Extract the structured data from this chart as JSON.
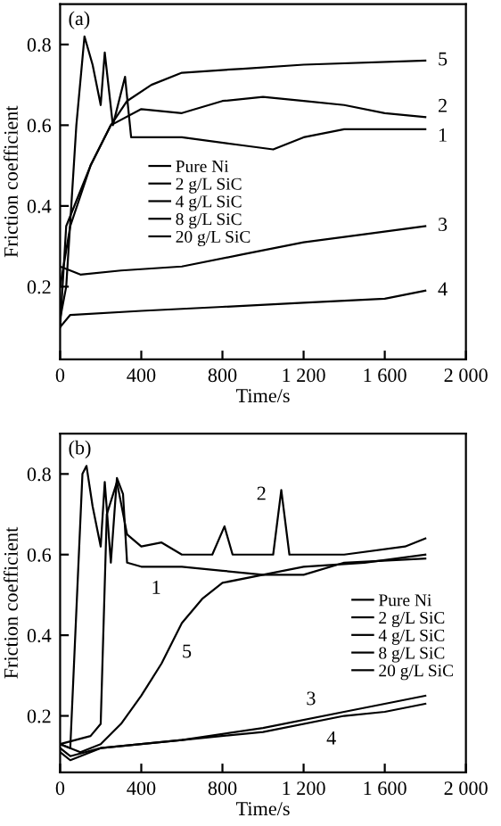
{
  "chart_data": [
    {
      "type": "line",
      "annotations": [
        "(a)",
        {
          "text": "1",
          "x": 1800,
          "y": 0.59
        },
        {
          "text": "2",
          "x": 1800,
          "y": 0.62
        },
        {
          "text": "3",
          "x": 1800,
          "y": 0.35
        },
        {
          "text": "4",
          "x": 1800,
          "y": 0.19
        },
        {
          "text": "5",
          "x": 1800,
          "y": 0.76
        }
      ],
      "xlabel": "Time/s",
      "ylabel": "Friction coefficient",
      "xlim": [
        0,
        2000
      ],
      "ylim": [
        0.02,
        0.9
      ],
      "xticks": [
        0,
        400,
        800,
        {
          "value": 1200,
          "label": "1 200"
        },
        {
          "value": 1600,
          "label": "1 600"
        },
        {
          "value": 2000,
          "label": "2 000"
        }
      ],
      "yticks": [
        0.2,
        0.4,
        0.6,
        0.8
      ],
      "legend": "center left",
      "grid": false,
      "series": [
        {
          "name": "Pure Ni",
          "color": "#000000",
          "x": [
            0,
            30,
            80,
            120,
            160,
            200,
            220,
            260,
            320,
            350,
            600,
            900,
            1050,
            1200,
            1400,
            1800
          ],
          "values": [
            0.12,
            0.2,
            0.6,
            0.82,
            0.75,
            0.65,
            0.78,
            0.6,
            0.72,
            0.57,
            0.57,
            0.55,
            0.54,
            0.57,
            0.59,
            0.59
          ]
        },
        {
          "name": "2 g/L SiC",
          "color": "#000000",
          "x": [
            0,
            50,
            150,
            250,
            400,
            600,
            800,
            1000,
            1200,
            1400,
            1600,
            1800
          ],
          "values": [
            0.2,
            0.35,
            0.5,
            0.6,
            0.64,
            0.63,
            0.66,
            0.67,
            0.66,
            0.65,
            0.63,
            0.62
          ]
        },
        {
          "name": "4 g/L SiC",
          "color": "#000000",
          "x": [
            0,
            100,
            300,
            600,
            900,
            1200,
            1500,
            1800
          ],
          "values": [
            0.25,
            0.23,
            0.24,
            0.25,
            0.28,
            0.31,
            0.33,
            0.35
          ]
        },
        {
          "name": "8 g/L SiC",
          "color": "#000000",
          "x": [
            0,
            50,
            400,
            800,
            1200,
            1600,
            1800
          ],
          "values": [
            0.1,
            0.13,
            0.14,
            0.15,
            0.16,
            0.17,
            0.19
          ]
        },
        {
          "name": "20 g/L SiC",
          "color": "#000000",
          "x": [
            0,
            30,
            150,
            250,
            330,
            450,
            600,
            900,
            1200,
            1800
          ],
          "values": [
            0.1,
            0.35,
            0.5,
            0.6,
            0.66,
            0.7,
            0.73,
            0.74,
            0.75,
            0.76
          ]
        }
      ]
    },
    {
      "type": "line",
      "annotations": [
        "(b)",
        {
          "text": "1",
          "x": 400,
          "y": 0.57
        },
        {
          "text": "2",
          "x": 1090,
          "y": 0.76
        },
        {
          "text": "3",
          "x": 1200,
          "y": 0.19
        },
        {
          "text": "4",
          "x": 1300,
          "y": 0.19
        },
        {
          "text": "5",
          "x": 600,
          "y": 0.43
        }
      ],
      "xlabel": "Time/s",
      "ylabel": "Friction coefficient",
      "xlim": [
        0,
        2000
      ],
      "ylim": [
        0.06,
        0.9
      ],
      "xticks": [
        0,
        400,
        800,
        {
          "value": 1200,
          "label": "1 200"
        },
        {
          "value": 1600,
          "label": "1 600"
        },
        {
          "value": 2000,
          "label": "2 000"
        }
      ],
      "yticks": [
        0.2,
        0.4,
        0.6,
        0.8
      ],
      "legend": "center right",
      "grid": false,
      "series": [
        {
          "name": "Pure Ni",
          "color": "#000000",
          "x": [
            0,
            50,
            110,
            130,
            160,
            200,
            220,
            250,
            280,
            310,
            330,
            400,
            600,
            800,
            1000,
            1200,
            1400,
            1800
          ],
          "values": [
            0.13,
            0.12,
            0.8,
            0.82,
            0.72,
            0.62,
            0.78,
            0.58,
            0.79,
            0.75,
            0.58,
            0.57,
            0.57,
            0.56,
            0.55,
            0.55,
            0.58,
            0.59
          ]
        },
        {
          "name": "2 g/L SiC",
          "color": "#000000",
          "x": [
            0,
            150,
            200,
            230,
            280,
            330,
            400,
            500,
            600,
            750,
            810,
            850,
            1050,
            1090,
            1130,
            1400,
            1700,
            1800
          ],
          "values": [
            0.13,
            0.15,
            0.18,
            0.7,
            0.78,
            0.65,
            0.62,
            0.63,
            0.6,
            0.6,
            0.67,
            0.6,
            0.6,
            0.76,
            0.6,
            0.6,
            0.62,
            0.64
          ]
        },
        {
          "name": "4 g/L SiC",
          "color": "#000000",
          "x": [
            0,
            50,
            200,
            600,
            1000,
            1400,
            1600,
            1800
          ],
          "values": [
            0.12,
            0.1,
            0.12,
            0.14,
            0.17,
            0.21,
            0.23,
            0.25
          ]
        },
        {
          "name": "8 g/L SiC",
          "color": "#000000",
          "x": [
            0,
            50,
            200,
            600,
            1000,
            1400,
            1600,
            1800
          ],
          "values": [
            0.11,
            0.09,
            0.12,
            0.14,
            0.16,
            0.2,
            0.21,
            0.23
          ]
        },
        {
          "name": "20 g/L SiC",
          "color": "#000000",
          "x": [
            0,
            100,
            200,
            300,
            400,
            500,
            600,
            700,
            800,
            1000,
            1200,
            1500,
            1800
          ],
          "values": [
            0.13,
            0.11,
            0.13,
            0.18,
            0.25,
            0.33,
            0.43,
            0.49,
            0.53,
            0.55,
            0.57,
            0.58,
            0.6
          ]
        }
      ]
    }
  ]
}
